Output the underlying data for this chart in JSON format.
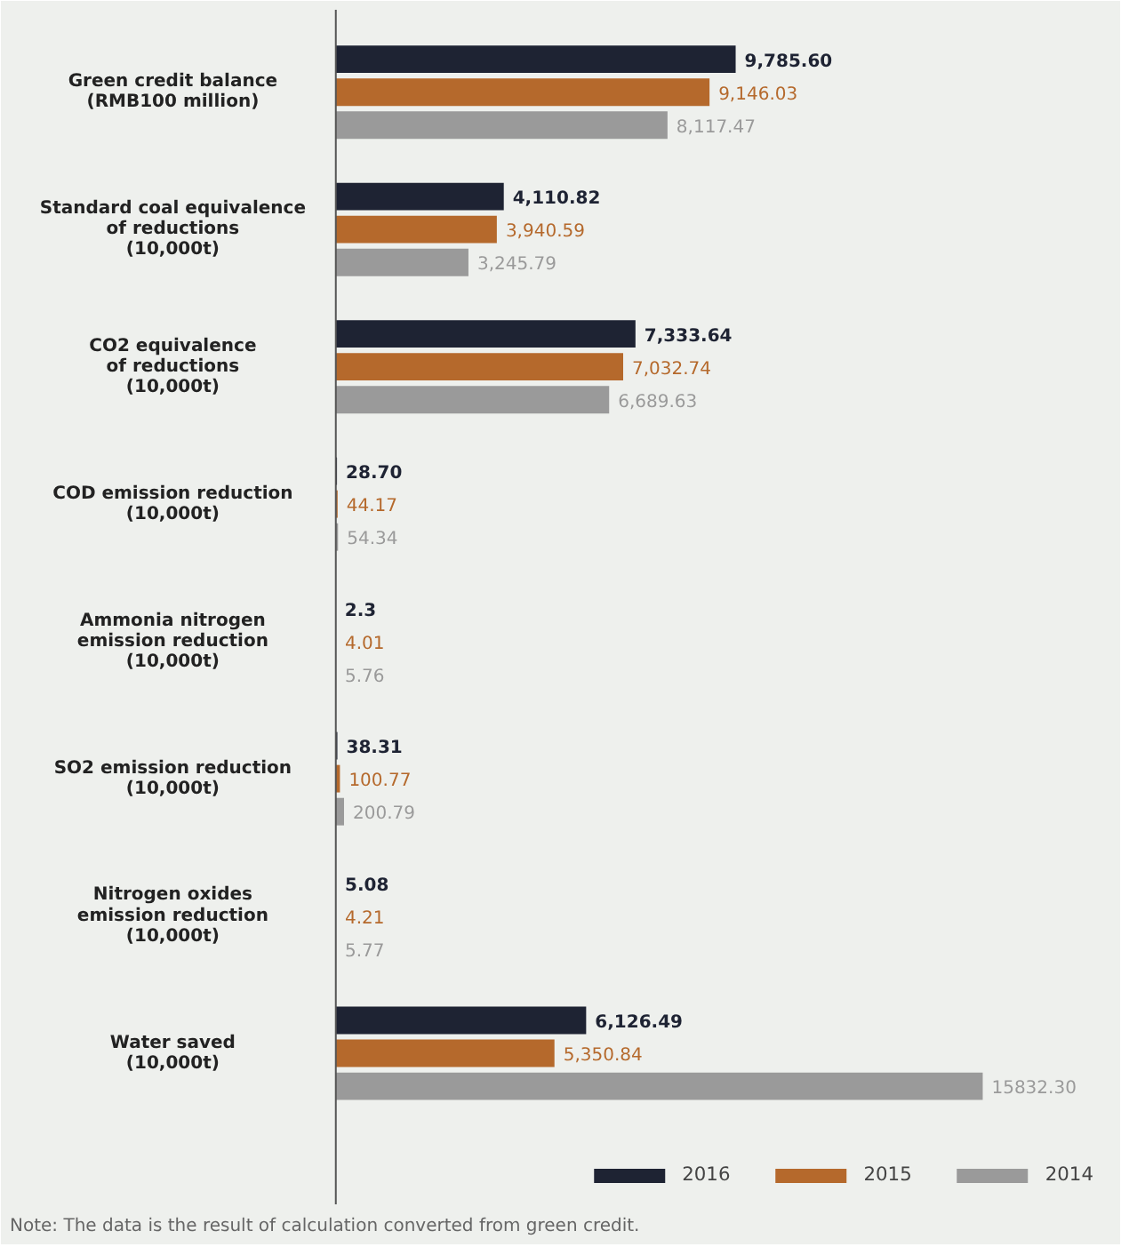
{
  "chart_data": {
    "type": "bar",
    "orientation": "horizontal",
    "categories": [
      "Green credit balance\n(RMB100 million)",
      "Standard coal equivalence\nof reductions\n(10,000t)",
      "CO2 equivalence\nof reductions\n(10,000t)",
      "COD emission reduction\n(10,000t)",
      "Ammonia nitrogen\nemission reduction\n(10,000t)",
      "SO2 emission reduction\n(10,000t)",
      "Nitrogen oxides\nemission reduction\n(10,000t)",
      "Water saved\n(10,000t)"
    ],
    "series": [
      {
        "name": "2016",
        "color": "#1e2333",
        "values": [
          9785.6,
          4110.82,
          7333.64,
          28.7,
          2.3,
          38.31,
          5.08,
          6126.49
        ],
        "value_labels": [
          "9,785.60",
          "4,110.82",
          "7,333.64",
          "28.70",
          "2.3",
          "38.31",
          "5.08",
          "6,126.49"
        ]
      },
      {
        "name": "2015",
        "color": "#b5692c",
        "values": [
          9146.03,
          3940.59,
          7032.74,
          44.17,
          4.01,
          100.77,
          4.21,
          5350.84
        ],
        "value_labels": [
          "9,146.03",
          "3,940.59",
          "7,032.74",
          "44.17",
          "4.01",
          "100.77",
          "4.21",
          "5,350.84"
        ]
      },
      {
        "name": "2014",
        "color": "#9a9a9a",
        "values": [
          8117.47,
          3245.79,
          6689.63,
          54.34,
          5.76,
          200.79,
          5.77,
          15832.3
        ],
        "value_labels": [
          "8,117.47",
          "3,245.79",
          "6,689.63",
          "54.34",
          "5.76",
          "200.79",
          "5.77",
          "15832.30"
        ]
      }
    ],
    "legend": "bottom right",
    "grid": false,
    "annotations": [
      "Note: The data is the result of calculation converted from green credit."
    ]
  }
}
